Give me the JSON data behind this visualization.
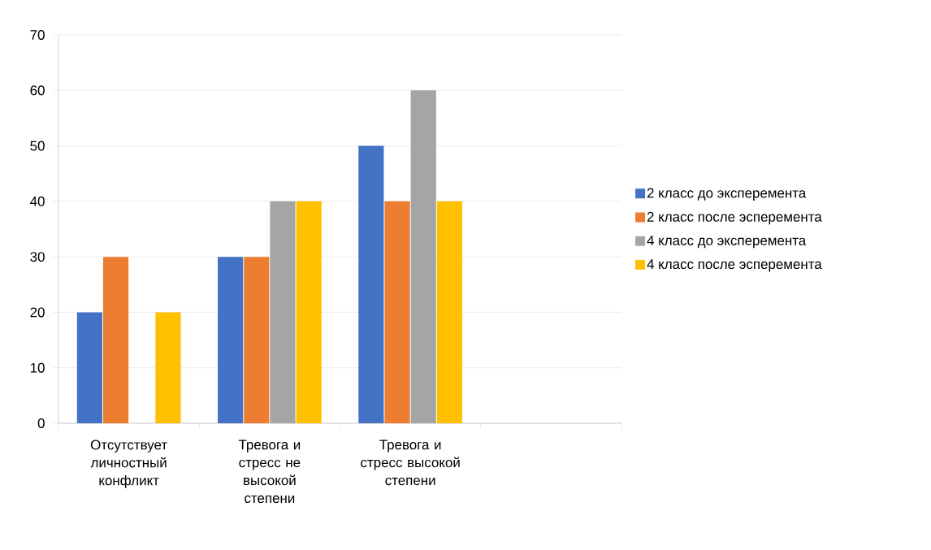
{
  "chart_data": {
    "type": "bar",
    "categories": [
      "Отсутствует личностный конфликт",
      "Тревога и стресс не высокой степени",
      "Тревога и стресс высокой степени",
      null
    ],
    "series": [
      {
        "name": "2 класс до эксперемента",
        "color": "#4472c4",
        "values": [
          20,
          30,
          50,
          null
        ]
      },
      {
        "name": "2 класс после эсперемента",
        "color": "#ed7d31",
        "values": [
          30,
          30,
          40,
          null
        ]
      },
      {
        "name": "4 класс до эксперемента",
        "color": "#a5a5a5",
        "values": [
          0,
          40,
          60,
          null
        ]
      },
      {
        "name": "4 класс после эсперемента",
        "color": "#ffc000",
        "values": [
          20,
          40,
          40,
          null
        ]
      }
    ],
    "ylim": [
      0,
      70
    ],
    "yticks": [
      0,
      10,
      20,
      30,
      40,
      50,
      60,
      70
    ],
    "grid": "y",
    "legend": "right"
  }
}
